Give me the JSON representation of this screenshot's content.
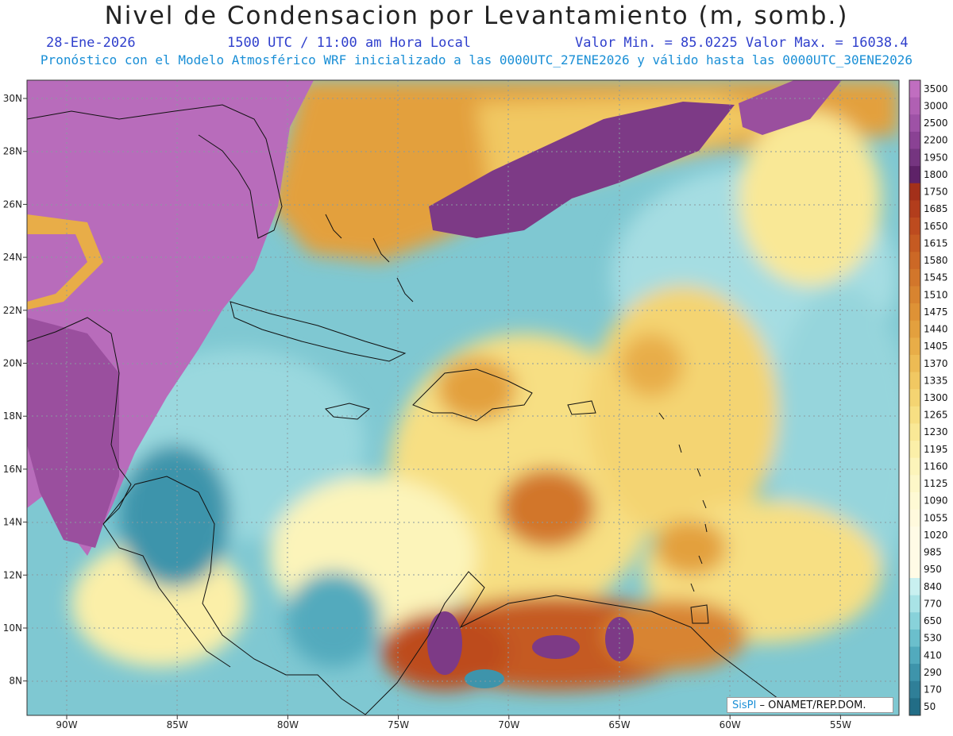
{
  "header": {
    "title": "Nivel de Condensacion por Levantamiento (m, somb.)",
    "date": "28-Ene-2026",
    "time": "1500 UTC / 11:00 am Hora Local",
    "min_max": "Valor Min. = 85.0225  Valor Max. = 16038.4",
    "forecast_info": "Pronóstico con el Modelo Atmosférico WRF inicializado a las 0000UTC_27ENE2026 y válido hasta las  0000UTC_30ENE2026"
  },
  "map": {
    "lon_labels": [
      "90W",
      "85W",
      "80W",
      "75W",
      "70W",
      "65W",
      "60W",
      "55W"
    ],
    "lat_labels": [
      "30N",
      "28N",
      "26N",
      "24N",
      "22N",
      "20N",
      "18N",
      "16N",
      "14N",
      "12N",
      "10N",
      "8N"
    ]
  },
  "colorbar": {
    "levels": [
      "3500",
      "3000",
      "2500",
      "2200",
      "1950",
      "1800",
      "1750",
      "1685",
      "1650",
      "1615",
      "1580",
      "1545",
      "1510",
      "1475",
      "1440",
      "1405",
      "1370",
      "1335",
      "1300",
      "1265",
      "1230",
      "1195",
      "1160",
      "1125",
      "1090",
      "1055",
      "1020",
      "985",
      "950",
      "840",
      "770",
      "650",
      "530",
      "410",
      "290",
      "170",
      "50"
    ],
    "colors": [
      "#c06ec0",
      "#b060b3",
      "#9e52a6",
      "#8a4294",
      "#753580",
      "#5e2268",
      "#a3301a",
      "#b23d1c",
      "#bd4b1f",
      "#c55a22",
      "#cc6826",
      "#d2762b",
      "#d88430",
      "#de9236",
      "#e3a03e",
      "#e8ad48",
      "#edbb54",
      "#f1c862",
      "#f4d472",
      "#f7df83",
      "#f9e896",
      "#fbefa8",
      "#fcf4ba",
      "#fdf7c8",
      "#fef9d4",
      "#fff9dd",
      "#fffbe6",
      "#fffbe6",
      "#fffbe6",
      "#c9f0f0",
      "#a9e3e6",
      "#88d2da",
      "#6bbfcc",
      "#52aabd",
      "#3e94ab",
      "#2f7f98",
      "#226d86"
    ]
  },
  "credit": {
    "logo": "SisPI",
    "text": "– ONAMET/REP.DOM."
  }
}
